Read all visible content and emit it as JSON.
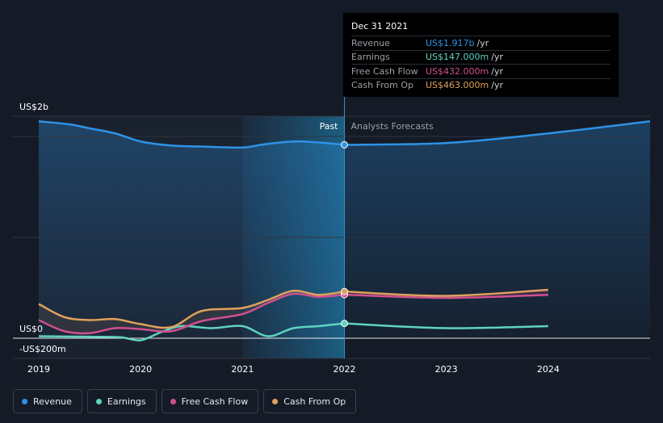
{
  "chart_data": {
    "type": "line",
    "x_ticks": [
      "2019",
      "2020",
      "2021",
      "2022",
      "2023",
      "2024"
    ],
    "y_labels": {
      "top": "US$2b",
      "zero": "US$0",
      "bottom": "-US$200m"
    },
    "ylim": [
      -0.2,
      2.2
    ],
    "region_labels": {
      "past": "Past",
      "forecast": "Analysts Forecasts"
    },
    "series": [
      {
        "name": "Revenue",
        "color": "#2e93e6",
        "past": [
          [
            2019.0,
            2.15
          ],
          [
            2019.3,
            2.12
          ],
          [
            2019.5,
            2.08
          ],
          [
            2019.75,
            2.03
          ],
          [
            2020.0,
            1.95
          ],
          [
            2020.3,
            1.91
          ],
          [
            2020.6,
            1.9
          ],
          [
            2021.0,
            1.89
          ],
          [
            2021.2,
            1.92
          ],
          [
            2021.5,
            1.95
          ],
          [
            2021.75,
            1.94
          ],
          [
            2022.0,
            1.917
          ]
        ],
        "forecast": [
          [
            2022.0,
            1.917
          ],
          [
            2023.0,
            1.935
          ],
          [
            2024.0,
            2.03
          ],
          [
            2025.0,
            2.15
          ]
        ]
      },
      {
        "name": "Earnings",
        "color": "#5fd4c0",
        "past": [
          [
            2019.0,
            0.02
          ],
          [
            2019.5,
            0.015
          ],
          [
            2019.8,
            0.01
          ],
          [
            2020.0,
            -0.02
          ],
          [
            2020.2,
            0.06
          ],
          [
            2020.4,
            0.12
          ],
          [
            2020.7,
            0.1
          ],
          [
            2021.0,
            0.12
          ],
          [
            2021.25,
            0.02
          ],
          [
            2021.5,
            0.1
          ],
          [
            2021.75,
            0.12
          ],
          [
            2022.0,
            0.147
          ]
        ],
        "forecast": [
          [
            2022.0,
            0.147
          ],
          [
            2023.0,
            0.1
          ],
          [
            2024.0,
            0.12
          ]
        ]
      },
      {
        "name": "Free Cash Flow",
        "color": "#d0508f",
        "past": [
          [
            2019.0,
            0.18
          ],
          [
            2019.25,
            0.07
          ],
          [
            2019.5,
            0.05
          ],
          [
            2019.75,
            0.1
          ],
          [
            2020.0,
            0.09
          ],
          [
            2020.3,
            0.07
          ],
          [
            2020.6,
            0.17
          ],
          [
            2021.0,
            0.24
          ],
          [
            2021.25,
            0.35
          ],
          [
            2021.5,
            0.44
          ],
          [
            2021.75,
            0.41
          ],
          [
            2022.0,
            0.432
          ]
        ],
        "forecast": [
          [
            2022.0,
            0.432
          ],
          [
            2023.0,
            0.4
          ],
          [
            2024.0,
            0.43
          ]
        ]
      },
      {
        "name": "Cash From Op",
        "color": "#e0a15c",
        "past": [
          [
            2019.0,
            0.34
          ],
          [
            2019.25,
            0.21
          ],
          [
            2019.5,
            0.18
          ],
          [
            2019.75,
            0.19
          ],
          [
            2020.0,
            0.14
          ],
          [
            2020.3,
            0.11
          ],
          [
            2020.6,
            0.27
          ],
          [
            2021.0,
            0.3
          ],
          [
            2021.25,
            0.38
          ],
          [
            2021.5,
            0.47
          ],
          [
            2021.75,
            0.43
          ],
          [
            2022.0,
            0.463
          ]
        ],
        "forecast": [
          [
            2022.0,
            0.463
          ],
          [
            2023.0,
            0.42
          ],
          [
            2024.0,
            0.48
          ]
        ]
      }
    ],
    "grid": true,
    "legend_position": "bottom-left"
  },
  "tooltip": {
    "date": "Dec 31 2021",
    "rows": [
      {
        "name": "Revenue",
        "value": "US$1.917b",
        "unit": "/yr",
        "color": "#2e93e6"
      },
      {
        "name": "Earnings",
        "value": "US$147.000m",
        "unit": "/yr",
        "color": "#5fd4c0"
      },
      {
        "name": "Free Cash Flow",
        "value": "US$432.000m",
        "unit": "/yr",
        "color": "#d0508f"
      },
      {
        "name": "Cash From Op",
        "value": "US$463.000m",
        "unit": "/yr",
        "color": "#e0a15c"
      }
    ]
  },
  "legend": [
    {
      "label": "Revenue",
      "color": "#2e93e6"
    },
    {
      "label": "Earnings",
      "color": "#5fd4c0"
    },
    {
      "label": "Free Cash Flow",
      "color": "#d0508f"
    },
    {
      "label": "Cash From Op",
      "color": "#e0a15c"
    }
  ]
}
